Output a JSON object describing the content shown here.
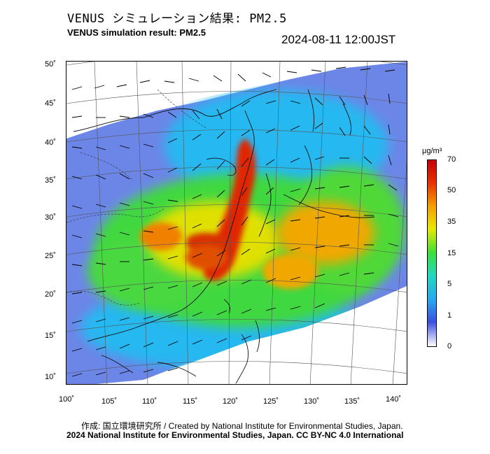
{
  "header": {
    "title_jp": "VENUS シミュレーション結果: PM2.5",
    "title_en": "VENUS simulation result: PM2.5",
    "timestamp": "2024-08-11 12:00JST"
  },
  "map": {
    "latitude_labels": [
      "50˚",
      "45˚",
      "40˚",
      "35˚",
      "30˚",
      "25˚",
      "20˚",
      "15˚",
      "10˚"
    ],
    "longitude_labels": [
      "100˚",
      "105˚",
      "110˚",
      "115˚",
      "120˚",
      "125˚",
      "130˚",
      "135˚",
      "140˚"
    ],
    "lat_range": [
      10,
      50
    ],
    "lon_range": [
      100,
      140
    ],
    "variable": "PM2.5"
  },
  "colorbar": {
    "unit": "μg/m³",
    "tick_labels": [
      "70",
      "50",
      "35",
      "15",
      "5",
      "1",
      "0"
    ],
    "stops": [
      "#ffffff",
      "#3a4fe0",
      "#28a8f0",
      "#22d8c0",
      "#38e038",
      "#e8e800",
      "#f5a000",
      "#e83000",
      "#c80000"
    ]
  },
  "footer": {
    "credit_line1": "作成: 国立環境研究所 / Created by National Institute for Environmental Studies, Japan.",
    "credit_line2": "2024 National Institute for Environmental Studies, Japan. CC BY-NC 4.0 International"
  }
}
